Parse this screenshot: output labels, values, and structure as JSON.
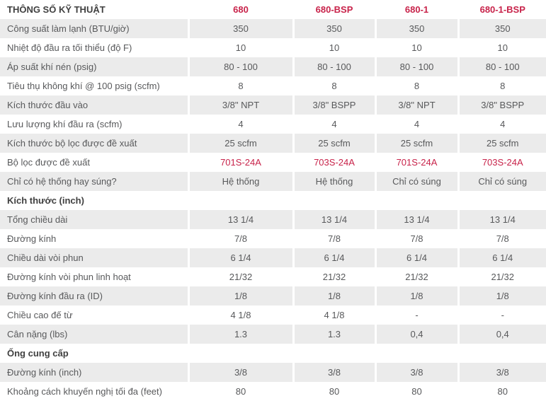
{
  "colors": {
    "accent_red": "#c8234a",
    "row_shade": "#ebebeb",
    "body_text": "#58595b",
    "heading_text": "#404040"
  },
  "table": {
    "title": "THÔNG SỐ KỸ THUẬT",
    "product_columns": [
      "680",
      "680-BSP",
      "680-1",
      "680-1-BSP"
    ],
    "rows": [
      {
        "type": "data",
        "label": "Công suất làm lạnh (BTU/giờ)",
        "values": [
          "350",
          "350",
          "350",
          "350"
        ]
      },
      {
        "type": "data",
        "label": "Nhiệt độ đầu ra tối thiểu (độ F)",
        "values": [
          "10",
          "10",
          "10",
          "10"
        ]
      },
      {
        "type": "data",
        "label": "Áp suất khí nén (psig)",
        "values": [
          "80 - 100",
          "80 - 100",
          "80 - 100",
          "80 - 100"
        ]
      },
      {
        "type": "data",
        "label": "Tiêu thụ không khí @ 100 psig (scfm)",
        "values": [
          "8",
          "8",
          "8",
          "8"
        ]
      },
      {
        "type": "data",
        "label": "Kích thước đầu vào",
        "values": [
          "3/8\" NPT",
          "3/8\" BSPP",
          "3/8\" NPT",
          "3/8\" BSPP"
        ]
      },
      {
        "type": "data",
        "label": "Lưu lượng khí đầu ra (scfm)",
        "values": [
          "4",
          "4",
          "4",
          "4"
        ]
      },
      {
        "type": "data",
        "label": "Kích thước bộ lọc được đề xuất",
        "values": [
          "25 scfm",
          "25 scfm",
          "25 scfm",
          "25 scfm"
        ]
      },
      {
        "type": "data",
        "label": "Bộ lọc được đề xuất",
        "values": [
          "701S-24A",
          "703S-24A",
          "701S-24A",
          "703S-24A"
        ],
        "value_color": "red"
      },
      {
        "type": "data",
        "label": "Chỉ có hệ thống hay súng?",
        "values": [
          "Hệ thống",
          "Hệ thống",
          "Chỉ có súng",
          "Chỉ có súng"
        ]
      },
      {
        "type": "section",
        "label": "Kích thước (inch)"
      },
      {
        "type": "data",
        "label": "Tổng chiều dài",
        "values": [
          "13 1/4",
          "13 1/4",
          "13 1/4",
          "13 1/4"
        ]
      },
      {
        "type": "data",
        "label": "Đường kính",
        "values": [
          "7/8",
          "7/8",
          "7/8",
          "7/8"
        ]
      },
      {
        "type": "data",
        "label": "Chiều dài vòi phun",
        "values": [
          "6 1/4",
          "6 1/4",
          "6 1/4",
          "6 1/4"
        ]
      },
      {
        "type": "data",
        "label": "Đường kính vòi phun linh hoạt",
        "values": [
          "21/32",
          "21/32",
          "21/32",
          "21/32"
        ]
      },
      {
        "type": "data",
        "label": "Đường kính đầu ra (ID)",
        "values": [
          "1/8",
          "1/8",
          "1/8",
          "1/8"
        ]
      },
      {
        "type": "data",
        "label": "Chiều cao đế từ",
        "values": [
          "4 1/8",
          "4 1/8",
          "-",
          "-"
        ]
      },
      {
        "type": "data",
        "label": "Cân nặng (lbs)",
        "values": [
          "1.3",
          "1.3",
          "0,4",
          "0,4"
        ]
      },
      {
        "type": "section",
        "label": "Ống cung cấp"
      },
      {
        "type": "data",
        "label": "Đường kính (inch)",
        "values": [
          "3/8",
          "3/8",
          "3/8",
          "3/8"
        ]
      },
      {
        "type": "data",
        "label": "Khoảng cách khuyến nghị tối đa (feet)",
        "values": [
          "80",
          "80",
          "80",
          "80"
        ]
      }
    ]
  }
}
